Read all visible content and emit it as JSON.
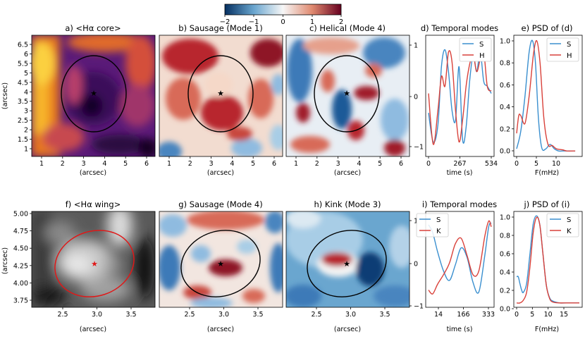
{
  "colorbar": {
    "ticks": [
      "−2",
      "−1",
      "0",
      "1",
      "2"
    ],
    "min": -2,
    "max": 2
  },
  "colors": {
    "S": "#3a8fcf",
    "H": "#d9413a",
    "K": "#d9413a",
    "ellipse_dark": "#000000",
    "ellipse_red": "#e01818"
  },
  "panels": {
    "a": {
      "title": "a) <Hα core>",
      "xlabel": "(arcsec)",
      "ylabel": "(arcsec)",
      "xticks": [
        "1",
        "2",
        "3",
        "4",
        "5",
        "6"
      ],
      "yticks": [
        "1",
        "1.5",
        "2",
        "2.5",
        "3",
        "3.5",
        "4",
        "4.5",
        "5",
        "5.5",
        "6",
        "6.5"
      ]
    },
    "b": {
      "title": "b) Sausage (Mode 1)",
      "xlabel": "(arcsec)",
      "xticks": [
        "1",
        "2",
        "3",
        "4",
        "5",
        "6"
      ]
    },
    "c": {
      "title": "c) Helical (Mode 4)",
      "xlabel": "(arcsec)",
      "xticks": [
        "1",
        "2",
        "3",
        "4",
        "5",
        "6"
      ],
      "rticks": [
        "1",
        "0",
        "−1"
      ]
    },
    "d": {
      "title": "d) Temporal modes",
      "xlabel": "time (s)",
      "xticks": [
        "0",
        "267",
        "534"
      ]
    },
    "e": {
      "title": "e) PSD of (d)",
      "xlabel": "F(mHz)",
      "xticks": [
        "0",
        "5",
        "10"
      ],
      "yticks": [
        "0.0",
        "0.2",
        "0.4",
        "0.6",
        "0.8",
        "1.0"
      ]
    },
    "f": {
      "title": "f) <Hα wing>",
      "xlabel": "(arcsec)",
      "ylabel": "(arcsec)",
      "xticks": [
        "2.5",
        "3.0",
        "3.5"
      ],
      "yticks": [
        "3.75",
        "4.00",
        "4.25",
        "4.50",
        "4.75",
        "5.00"
      ]
    },
    "g": {
      "title": "g) Sausage (Mode 4)",
      "xlabel": "(arcsec)",
      "xticks": [
        "2.5",
        "3.0",
        "3.5"
      ]
    },
    "h": {
      "title": "h) Kink (Mode 3)",
      "xlabel": "(arcsec)",
      "xticks": [
        "2.5",
        "3.0",
        "3.5"
      ],
      "rticks": [
        "1",
        "0",
        "−1"
      ]
    },
    "i": {
      "title": "i) Temporal modes",
      "xlabel": "time (s)",
      "xticks": [
        "14",
        "166",
        "333"
      ]
    },
    "j": {
      "title": "j) PSD of (i)",
      "xlabel": "F(mHz)",
      "xticks": [
        "0",
        "5",
        "10",
        "15"
      ],
      "yticks": [
        "0.0",
        "0.2",
        "0.4",
        "0.6",
        "0.8",
        "1.0"
      ]
    }
  },
  "chart_data": [
    {
      "panel": "d",
      "type": "line",
      "xlim": [
        0,
        534
      ],
      "ylim": [
        -1.25,
        1.25
      ],
      "series": [
        {
          "name": "S",
          "color": "#3a8fcf",
          "x": [
            0,
            40,
            80,
            110,
            140,
            170,
            200,
            230,
            260,
            290,
            320,
            350,
            380,
            410,
            440,
            470,
            500,
            534
          ],
          "y": [
            -0.35,
            -0.95,
            -0.6,
            0.6,
            0.95,
            0.5,
            -0.3,
            -0.5,
            0.6,
            -0.9,
            -0.65,
            0.3,
            0.85,
            0.5,
            0.9,
            0.3,
            0.2,
            0.05
          ]
        },
        {
          "name": "H",
          "color": "#d9413a",
          "x": [
            0,
            40,
            80,
            110,
            140,
            170,
            200,
            230,
            260,
            290,
            320,
            350,
            380,
            410,
            440,
            470,
            500,
            534
          ],
          "y": [
            0.05,
            -1.0,
            -0.3,
            0.4,
            0.2,
            0.9,
            0.7,
            -0.3,
            -0.95,
            -0.5,
            0.2,
            0.65,
            0.85,
            0.5,
            0.75,
            0.9,
            0.2,
            0.1
          ]
        }
      ]
    },
    {
      "panel": "e",
      "type": "line",
      "xlim": [
        0,
        15
      ],
      "ylim": [
        -0.05,
        1.05
      ],
      "series": [
        {
          "name": "S",
          "color": "#3a8fcf",
          "x": [
            0,
            1,
            2,
            3,
            3.8,
            4.5,
            5.2,
            6,
            7,
            8,
            9,
            10,
            11,
            12,
            14
          ],
          "y": [
            0.02,
            0.18,
            0.5,
            0.9,
            1.0,
            0.8,
            0.3,
            0.03,
            0.02,
            0.06,
            0.02,
            0.0,
            0.0,
            0.0,
            0.0
          ]
        },
        {
          "name": "H",
          "color": "#d9413a",
          "x": [
            0,
            0.5,
            1,
            2,
            3,
            4,
            4.8,
            5.6,
            6.5,
            7.5,
            8.5,
            9.5,
            11,
            12,
            14
          ],
          "y": [
            0.16,
            0.32,
            0.32,
            0.25,
            0.5,
            0.87,
            1.0,
            0.8,
            0.3,
            0.06,
            0.05,
            0.02,
            0.01,
            0.0,
            0.0
          ]
        }
      ]
    },
    {
      "panel": "i",
      "type": "line",
      "xlim": [
        14,
        333
      ],
      "ylim": [
        -1.25,
        1.25
      ],
      "series": [
        {
          "name": "S",
          "color": "#3a8fcf",
          "x": [
            14,
            35,
            60,
            90,
            120,
            150,
            180,
            210,
            240,
            270,
            300,
            320,
            333
          ],
          "y": [
            0.9,
            0.7,
            0.2,
            -0.3,
            -0.55,
            -0.15,
            0.3,
            0.05,
            -0.6,
            -0.85,
            0.1,
            0.85,
            0.95
          ]
        },
        {
          "name": "K",
          "color": "#d9413a",
          "x": [
            14,
            35,
            60,
            90,
            120,
            150,
            180,
            210,
            240,
            270,
            300,
            320,
            333
          ],
          "y": [
            -0.8,
            -0.9,
            -0.65,
            -0.4,
            -0.1,
            0.4,
            0.55,
            0.1,
            -0.4,
            -0.3,
            0.6,
            1.0,
            0.85
          ]
        }
      ]
    },
    {
      "panel": "j",
      "type": "line",
      "xlim": [
        0,
        19
      ],
      "ylim": [
        -0.05,
        1.05
      ],
      "series": [
        {
          "name": "S",
          "color": "#3a8fcf",
          "x": [
            0,
            0.5,
            1,
            1.5,
            2,
            3,
            4,
            5,
            6,
            7,
            8,
            9,
            10,
            11,
            13,
            15,
            19
          ],
          "y": [
            0.3,
            0.3,
            0.22,
            0.15,
            0.12,
            0.22,
            0.55,
            0.9,
            1.0,
            0.9,
            0.55,
            0.2,
            0.06,
            0.02,
            0.0,
            0.0,
            0.0
          ]
        },
        {
          "name": "K",
          "color": "#d9413a",
          "x": [
            0,
            1,
            2,
            3,
            4,
            5,
            6,
            7,
            8,
            9,
            10,
            11,
            13,
            15,
            19
          ],
          "y": [
            0.0,
            0.0,
            0.03,
            0.12,
            0.4,
            0.8,
            0.98,
            0.9,
            0.55,
            0.2,
            0.05,
            0.01,
            0.0,
            0.0,
            0.0
          ]
        }
      ]
    }
  ]
}
